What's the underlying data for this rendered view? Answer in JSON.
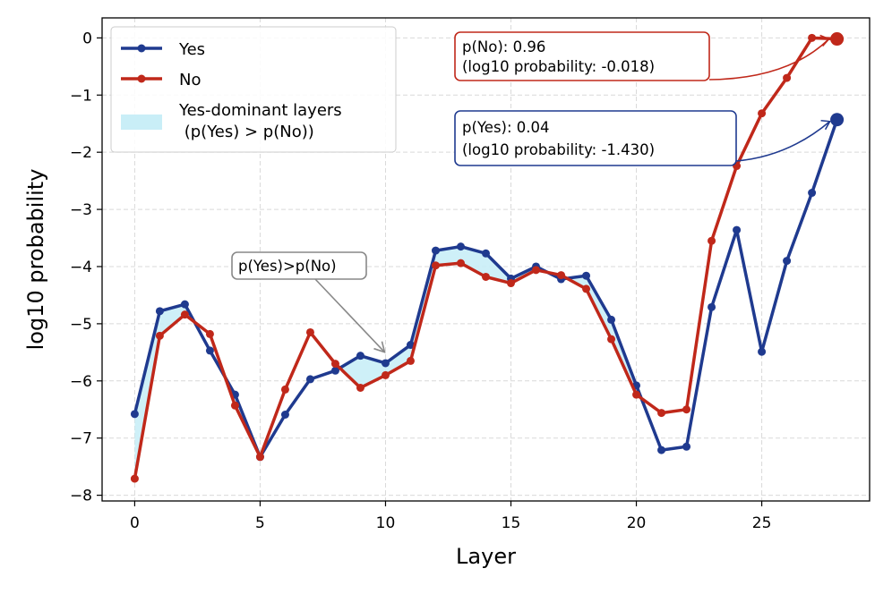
{
  "chart_data": {
    "type": "line",
    "title": "",
    "xlabel": "Layer",
    "ylabel": "log10 probability",
    "xlim": [
      -1.3,
      29.3
    ],
    "ylim": [
      -8.1,
      0.35
    ],
    "xticks": [
      0,
      5,
      10,
      15,
      20,
      25
    ],
    "yticks": [
      0,
      -1,
      -2,
      -3,
      -4,
      -5,
      -6,
      -7,
      -8
    ],
    "xtick_labels": [
      "0",
      "5",
      "10",
      "15",
      "20",
      "25"
    ],
    "ytick_labels": [
      "0",
      "−1",
      "−2",
      "−3",
      "−4",
      "−5",
      "−6",
      "−7",
      "−8"
    ],
    "grid": true,
    "legend_position": "top-left",
    "x": [
      0,
      1,
      2,
      3,
      4,
      5,
      6,
      7,
      8,
      9,
      10,
      11,
      12,
      13,
      14,
      15,
      16,
      17,
      18,
      19,
      20,
      21,
      22,
      23,
      24,
      25,
      26,
      27,
      28
    ],
    "series": [
      {
        "name": "Yes",
        "color": "#1f3a8f",
        "values": [
          -6.58,
          -4.78,
          -4.66,
          -5.47,
          -6.24,
          -7.33,
          -6.59,
          -5.97,
          -5.82,
          -5.56,
          -5.69,
          -5.37,
          -3.72,
          -3.65,
          -3.77,
          -4.21,
          -4.0,
          -4.22,
          -4.16,
          -4.93,
          -6.08,
          -7.21,
          -7.15,
          -4.71,
          -3.36,
          -5.49,
          -3.9,
          -2.71,
          -1.43
        ]
      },
      {
        "name": "No",
        "color": "#c0281a",
        "values": [
          -7.71,
          -5.21,
          -4.84,
          -5.18,
          -6.43,
          -7.33,
          -6.15,
          -5.15,
          -5.7,
          -6.12,
          -5.9,
          -5.65,
          -3.98,
          -3.94,
          -4.18,
          -4.29,
          -4.06,
          -4.15,
          -4.39,
          -5.27,
          -6.24,
          -6.56,
          -6.5,
          -3.55,
          -2.24,
          -1.32,
          -0.7,
          0.0,
          -0.018
        ]
      }
    ],
    "shaded_region": {
      "label": "Yes-dominant layers\n (p(Yes) > p(No))",
      "color": "#c9eef7",
      "description": "filled between Yes and No where Yes > No"
    },
    "annotations": [
      {
        "series": "No",
        "line1": "p(No): 0.96",
        "line2": "(log10 probability: -0.018)",
        "x": 28,
        "y": -0.018
      },
      {
        "series": "Yes",
        "line1": "p(Yes): 0.04",
        "line2": "(log10 probability: -1.430)",
        "x": 28,
        "y": -1.43
      },
      {
        "series": "none",
        "text": "p(Yes)>p(No)",
        "x": 10,
        "y": -5.56
      }
    ]
  }
}
